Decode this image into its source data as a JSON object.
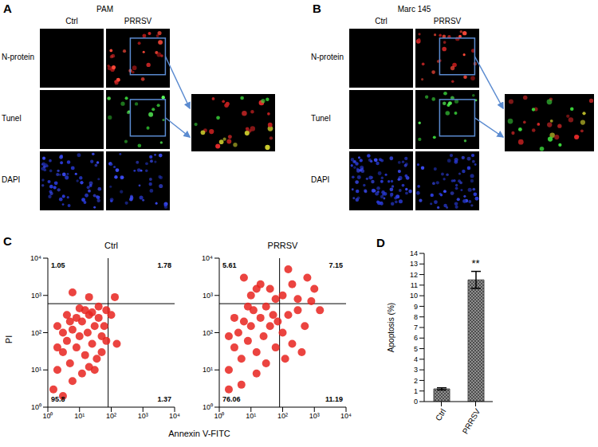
{
  "figure": {
    "A": {
      "label": "A",
      "title": "PAM",
      "columns": [
        "Ctrl",
        "PRRSV"
      ],
      "rows": [
        "N-protein",
        "Tunel",
        "DAPI"
      ]
    },
    "B": {
      "label": "B",
      "title": "Marc 145",
      "columns": [
        "Ctrl",
        "PRRSV"
      ],
      "rows": [
        "N-protein",
        "Tunel",
        "DAPI"
      ]
    },
    "C": {
      "label": "C",
      "x_label": "Annexin V-FITC",
      "y_label": "PI"
    }
  },
  "chart_data": [
    {
      "type": "scatter",
      "title": "Ctrl",
      "log": true,
      "xlim": [
        1,
        10000
      ],
      "ylim": [
        1,
        10000
      ],
      "xticks": [
        {
          "value": 1,
          "label": "10⁰"
        },
        {
          "value": 10,
          "label": "10¹"
        },
        {
          "value": 100,
          "label": "10²"
        },
        {
          "value": 1000,
          "label": "10³"
        },
        {
          "value": 10000,
          "label": "10⁴"
        }
      ],
      "yticks": [
        {
          "value": 1,
          "label": "10⁰"
        },
        {
          "value": 10,
          "label": "10¹"
        },
        {
          "value": 100,
          "label": "10²"
        },
        {
          "value": 1000,
          "label": "10³"
        },
        {
          "value": 10000,
          "label": "10⁴"
        }
      ],
      "color": "#e8231e",
      "gates": {
        "x": 80,
        "y": 600
      },
      "quadrant_percentages": {
        "upper_left": 1.05,
        "upper_right": 1.78,
        "lower_left": 95.8,
        "lower_right": 1.37
      },
      "points": [
        [
          2,
          10
        ],
        [
          3,
          30
        ],
        [
          4,
          60
        ],
        [
          5,
          15
        ],
        [
          6,
          120
        ],
        [
          8,
          40
        ],
        [
          10,
          80
        ],
        [
          12,
          200
        ],
        [
          15,
          25
        ],
        [
          18,
          100
        ],
        [
          20,
          300
        ],
        [
          25,
          50
        ],
        [
          30,
          150
        ],
        [
          35,
          20
        ],
        [
          40,
          250
        ],
        [
          50,
          80
        ],
        [
          8,
          250
        ],
        [
          5,
          200
        ],
        [
          3,
          100
        ],
        [
          2,
          40
        ],
        [
          12,
          8
        ],
        [
          20,
          12
        ],
        [
          6,
          5
        ],
        [
          15,
          400
        ],
        [
          25,
          350
        ],
        [
          40,
          500
        ],
        [
          60,
          150
        ],
        [
          10,
          450
        ],
        [
          4,
          300
        ],
        [
          30,
          10
        ],
        [
          70,
          60
        ],
        [
          2,
          150
        ],
        [
          1.5,
          3
        ],
        [
          3,
          2
        ],
        [
          100,
          300
        ],
        [
          150,
          50
        ],
        [
          130,
          900
        ],
        [
          20,
          900
        ],
        [
          6,
          1200
        ],
        [
          50,
          30
        ],
        [
          70,
          400
        ]
      ]
    },
    {
      "type": "scatter",
      "title": "PRRSV",
      "log": true,
      "xlim": [
        1,
        10000
      ],
      "ylim": [
        1,
        10000
      ],
      "xticks": [
        {
          "value": 1,
          "label": "10⁰"
        },
        {
          "value": 10,
          "label": "10¹"
        },
        {
          "value": 100,
          "label": "10²"
        },
        {
          "value": 1000,
          "label": "10³"
        },
        {
          "value": 10000,
          "label": "10⁴"
        }
      ],
      "yticks": [
        {
          "value": 1,
          "label": "10⁰"
        },
        {
          "value": 10,
          "label": "10¹"
        },
        {
          "value": 100,
          "label": "10²"
        },
        {
          "value": 1000,
          "label": "10³"
        },
        {
          "value": 10000,
          "label": "10⁴"
        }
      ],
      "color": "#e8231e",
      "gates": {
        "x": 80,
        "y": 600
      },
      "quadrant_percentages": {
        "upper_left": 5.61,
        "upper_right": 7.15,
        "lower_left": 76.06,
        "lower_right": 11.19
      },
      "points": [
        [
          2,
          10
        ],
        [
          3,
          40
        ],
        [
          4,
          100
        ],
        [
          5,
          20
        ],
        [
          6,
          200
        ],
        [
          8,
          60
        ],
        [
          10,
          150
        ],
        [
          12,
          400
        ],
        [
          15,
          30
        ],
        [
          20,
          250
        ],
        [
          25,
          80
        ],
        [
          30,
          500
        ],
        [
          40,
          150
        ],
        [
          50,
          300
        ],
        [
          60,
          40
        ],
        [
          3,
          250
        ],
        [
          2,
          80
        ],
        [
          8,
          500
        ],
        [
          15,
          8
        ],
        [
          30,
          15
        ],
        [
          5,
          4
        ],
        [
          10,
          1000
        ],
        [
          20,
          2000
        ],
        [
          6,
          3000
        ],
        [
          40,
          1500
        ],
        [
          15,
          1500
        ],
        [
          100,
          100
        ],
        [
          150,
          300
        ],
        [
          200,
          50
        ],
        [
          300,
          400
        ],
        [
          500,
          150
        ],
        [
          120,
          20
        ],
        [
          400,
          30
        ],
        [
          100,
          1000
        ],
        [
          200,
          2000
        ],
        [
          300,
          800
        ],
        [
          600,
          3000
        ],
        [
          1000,
          1500
        ],
        [
          150,
          5000
        ],
        [
          800,
          700
        ],
        [
          1500,
          400
        ],
        [
          2,
          3
        ],
        [
          60,
          800
        ],
        [
          70,
          200
        ]
      ]
    },
    {
      "label": "D",
      "type": "bar",
      "categories": [
        "Ctrl",
        "PRRSV"
      ],
      "values": [
        1.2,
        11.5
      ],
      "errors": [
        0.1,
        0.8
      ],
      "y_label": "Apoptosis (%)",
      "ylim": [
        0,
        14
      ],
      "yticks": [
        0,
        1,
        2,
        3,
        4,
        5,
        6,
        7,
        8,
        9,
        10,
        11,
        12,
        13,
        14
      ],
      "color": "#4d4d4d",
      "annotations": [
        {
          "category": "PRRSV",
          "text": "**"
        }
      ]
    }
  ]
}
